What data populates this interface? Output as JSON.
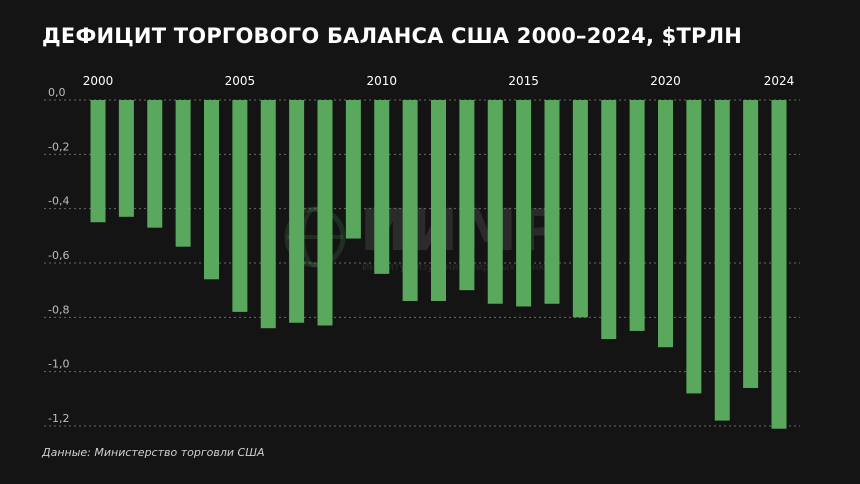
{
  "title": "ДЕФИЦИТ ТОРГОВОГО БАЛАНСА США 2000–2024, $ТРЛН",
  "source": "Данные: Министерство торговли США",
  "watermark": {
    "name": "ИИМР",
    "subtitle": "Институт Изучения Мировых Рынков"
  },
  "colors": {
    "background": "#141414",
    "bar": "#59a85e",
    "grid": "#6a6a6a"
  },
  "chart_data": {
    "type": "bar",
    "title": "ДЕФИЦИТ ТОРГОВОГО БАЛАНСА США 2000–2024, $ТРЛН",
    "xlabel": "",
    "ylabel": "",
    "grid": true,
    "ylim": [
      -1.2,
      0.0
    ],
    "yticks": [
      "0,0",
      "-0,2",
      "-0,4",
      "-0,6",
      "-0,8",
      "-1,0",
      "-1,2"
    ],
    "ytick_values": [
      0.0,
      -0.2,
      -0.4,
      -0.6,
      -0.8,
      -1.0,
      -1.2
    ],
    "categories": [
      "2000",
      "2001",
      "2002",
      "2003",
      "2004",
      "2005",
      "2006",
      "2007",
      "2008",
      "2009",
      "2010",
      "2011",
      "2012",
      "2013",
      "2014",
      "2015",
      "2016",
      "2017",
      "2018",
      "2019",
      "2020",
      "2021",
      "2022",
      "2023",
      "2024"
    ],
    "x_tick_labels": [
      "2000",
      "2005",
      "2010",
      "2015",
      "2020",
      "2024"
    ],
    "values": [
      -0.45,
      -0.43,
      -0.47,
      -0.54,
      -0.66,
      -0.78,
      -0.84,
      -0.82,
      -0.83,
      -0.51,
      -0.64,
      -0.74,
      -0.74,
      -0.7,
      -0.75,
      -0.76,
      -0.75,
      -0.8,
      -0.88,
      -0.85,
      -0.91,
      -1.08,
      -1.18,
      -1.06,
      -1.21
    ]
  }
}
